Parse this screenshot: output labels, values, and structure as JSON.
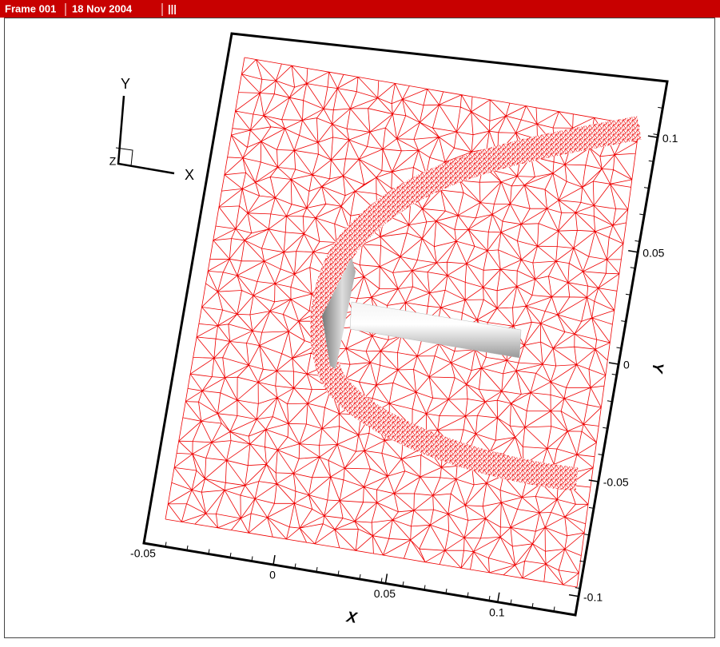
{
  "header": {
    "frame": "Frame 001",
    "date": "18 Nov 2004",
    "bars": "|||"
  },
  "axes": {
    "x_title": "X",
    "y_title": "Y",
    "x_ticks": [
      "-0.05",
      "0",
      "0.05",
      "0.1"
    ],
    "y_ticks": [
      "0.1",
      "0.05",
      "0",
      "-0.05",
      "-0.1"
    ]
  },
  "triad": {
    "y": "Y",
    "x": "X",
    "z": "Z"
  }
}
